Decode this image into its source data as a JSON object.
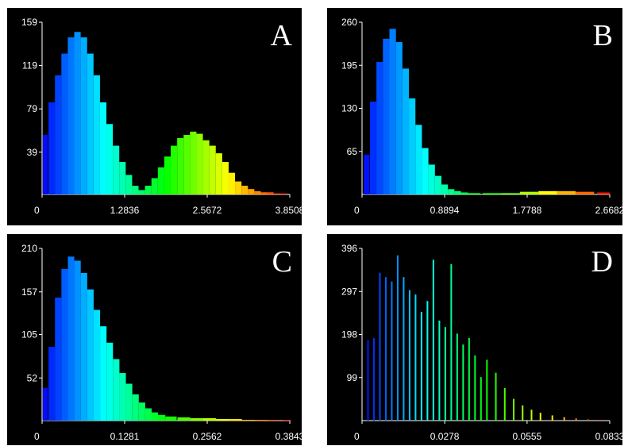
{
  "panels": [
    {
      "letter": "A",
      "yticks": [
        "159",
        "119",
        "79",
        "39"
      ],
      "ytick_values": [
        159,
        119,
        79,
        39
      ],
      "xticks": [
        "0",
        "1.2836",
        "2.5672",
        "3.8508"
      ],
      "xtick_values": [
        0,
        1.2836,
        2.5672,
        3.8508
      ]
    },
    {
      "letter": "B",
      "yticks": [
        "260",
        "195",
        "130",
        "65"
      ],
      "ytick_values": [
        260,
        195,
        130,
        65
      ],
      "xticks": [
        "0",
        "0.8894",
        "1.7788",
        "2.6682"
      ],
      "xtick_values": [
        0,
        0.8894,
        1.7788,
        2.6682
      ]
    },
    {
      "letter": "C",
      "yticks": [
        "210",
        "157",
        "105",
        "52"
      ],
      "ytick_values": [
        210,
        157,
        105,
        52
      ],
      "xticks": [
        "0",
        "0.1281",
        "0.2562",
        "0.3843"
      ],
      "xtick_values": [
        0,
        0.1281,
        0.2562,
        0.3843
      ]
    },
    {
      "letter": "D",
      "yticks": [
        "396",
        "297",
        "198",
        "99"
      ],
      "ytick_values": [
        396,
        297,
        198,
        99
      ],
      "xticks": [
        "0",
        "0.0278",
        "0.0555",
        "0.0833"
      ],
      "xtick_values": [
        0,
        0.0278,
        0.0555,
        0.0833
      ]
    }
  ],
  "chart_data": [
    {
      "type": "bar",
      "panel": "A",
      "style": "histogram",
      "xlim": [
        0,
        3.8508
      ],
      "ylim": [
        0,
        159
      ],
      "x": [
        0.05,
        0.15,
        0.25,
        0.35,
        0.45,
        0.55,
        0.65,
        0.75,
        0.85,
        0.95,
        1.05,
        1.15,
        1.25,
        1.35,
        1.45,
        1.55,
        1.65,
        1.75,
        1.85,
        1.95,
        2.05,
        2.15,
        2.25,
        2.35,
        2.45,
        2.55,
        2.65,
        2.75,
        2.85,
        2.95,
        3.05,
        3.15,
        3.25,
        3.35,
        3.45,
        3.55,
        3.65,
        3.75
      ],
      "values": [
        55,
        85,
        110,
        130,
        145,
        150,
        145,
        130,
        110,
        85,
        65,
        45,
        30,
        18,
        8,
        4,
        8,
        15,
        25,
        35,
        45,
        52,
        55,
        58,
        56,
        50,
        45,
        38,
        30,
        20,
        12,
        8,
        5,
        3,
        2,
        2,
        1,
        1
      ],
      "gradient": [
        "#0000ff",
        "#00ffff",
        "#00ff00",
        "#ffff00",
        "#ff0000"
      ]
    },
    {
      "type": "bar",
      "panel": "B",
      "style": "histogram",
      "xlim": [
        0,
        2.6682
      ],
      "ylim": [
        0,
        260
      ],
      "x": [
        0.05,
        0.12,
        0.19,
        0.26,
        0.33,
        0.4,
        0.47,
        0.54,
        0.61,
        0.68,
        0.75,
        0.82,
        0.89,
        0.96,
        1.03,
        1.1,
        1.2,
        1.4,
        1.6,
        1.8,
        2.0,
        2.2,
        2.4,
        2.6
      ],
      "values": [
        60,
        140,
        200,
        235,
        250,
        230,
        190,
        145,
        105,
        70,
        45,
        28,
        15,
        8,
        5,
        3,
        2,
        2,
        2,
        4,
        5,
        5,
        4,
        3
      ],
      "gradient": [
        "#0000ff",
        "#00ffff",
        "#00ff00",
        "#ffff00",
        "#ff0000"
      ]
    },
    {
      "type": "bar",
      "panel": "C",
      "style": "histogram",
      "xlim": [
        0,
        0.3843
      ],
      "ylim": [
        0,
        210
      ],
      "x": [
        0.005,
        0.015,
        0.025,
        0.035,
        0.045,
        0.055,
        0.065,
        0.075,
        0.085,
        0.095,
        0.105,
        0.115,
        0.125,
        0.135,
        0.145,
        0.155,
        0.165,
        0.175,
        0.185,
        0.2,
        0.22,
        0.24,
        0.26,
        0.28,
        0.3,
        0.32,
        0.34,
        0.36,
        0.38
      ],
      "values": [
        40,
        90,
        150,
        185,
        200,
        195,
        180,
        160,
        135,
        115,
        95,
        75,
        58,
        45,
        32,
        22,
        15,
        10,
        7,
        5,
        4,
        3,
        3,
        2,
        2,
        1,
        1,
        1,
        1
      ],
      "gradient": [
        "#0000ff",
        "#00ffff",
        "#00ff00",
        "#ffff00",
        "#ff0000"
      ]
    },
    {
      "type": "bar",
      "panel": "D",
      "style": "sparse histogram",
      "xlim": [
        0,
        0.0833
      ],
      "ylim": [
        0,
        396
      ],
      "x": [
        0.002,
        0.004,
        0.006,
        0.008,
        0.01,
        0.012,
        0.014,
        0.016,
        0.018,
        0.02,
        0.022,
        0.024,
        0.026,
        0.028,
        0.03,
        0.032,
        0.034,
        0.036,
        0.038,
        0.04,
        0.042,
        0.045,
        0.048,
        0.051,
        0.054,
        0.057,
        0.06,
        0.064,
        0.068,
        0.072,
        0.076,
        0.08
      ],
      "values": [
        185,
        190,
        340,
        330,
        320,
        380,
        330,
        300,
        290,
        250,
        275,
        370,
        230,
        215,
        360,
        200,
        175,
        190,
        150,
        100,
        140,
        110,
        75,
        50,
        35,
        25,
        18,
        12,
        8,
        5,
        3,
        2
      ],
      "gradient": [
        "#0000ff",
        "#00ffff",
        "#00ff00",
        "#ffff00",
        "#ff0000"
      ]
    }
  ]
}
